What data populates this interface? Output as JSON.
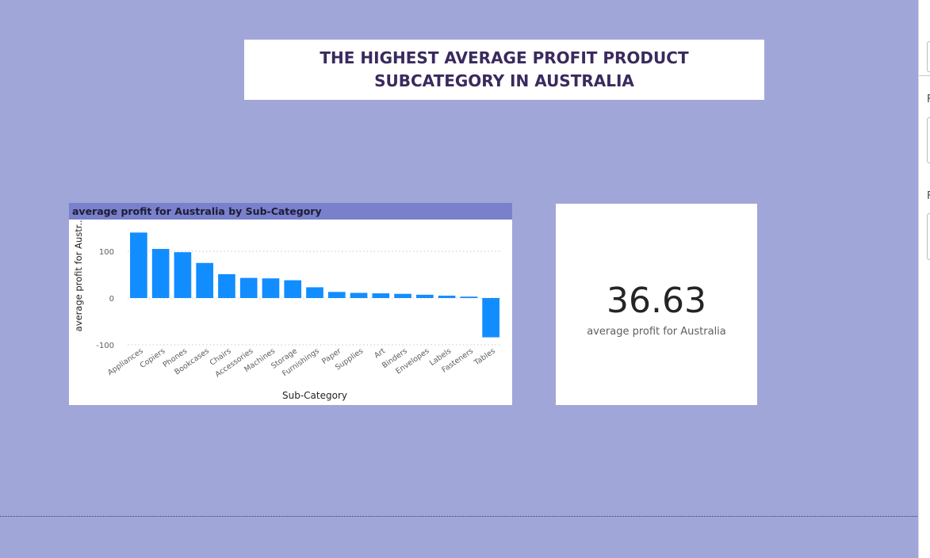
{
  "page_title": "THE HIGHEST AVERAGE PROFIT PRODUCT SUBCATEGORY IN AUSTRALIA",
  "colors": {
    "background": "#a1a6d9",
    "header": "#7980cc",
    "bar": "#118dff",
    "title_text": "#3a2a5e"
  },
  "chart_data": {
    "type": "bar",
    "title": "average profit for Australia by Sub-Category",
    "xlabel": "Sub-Category",
    "ylabel": "average profit for Austr...",
    "categories": [
      "Appliances",
      "Copiers",
      "Phones",
      "Bookcases",
      "Chairs",
      "Accessories",
      "Machines",
      "Storage",
      "Furnishings",
      "Paper",
      "Supplies",
      "Art",
      "Binders",
      "Envelopes",
      "Labels",
      "Fasteners",
      "Tables"
    ],
    "values": [
      140,
      105,
      98,
      75,
      51,
      43,
      42,
      38,
      23,
      13,
      11,
      10,
      9,
      7,
      5,
      3,
      -84
    ],
    "yticks": [
      "100",
      "0",
      "-100"
    ],
    "ylim": [
      -100,
      140
    ],
    "grid": true
  },
  "kpi": {
    "value": "36.63",
    "label": "average profit for Australia"
  },
  "side_panel": {
    "letters": [
      "F",
      "F"
    ]
  }
}
